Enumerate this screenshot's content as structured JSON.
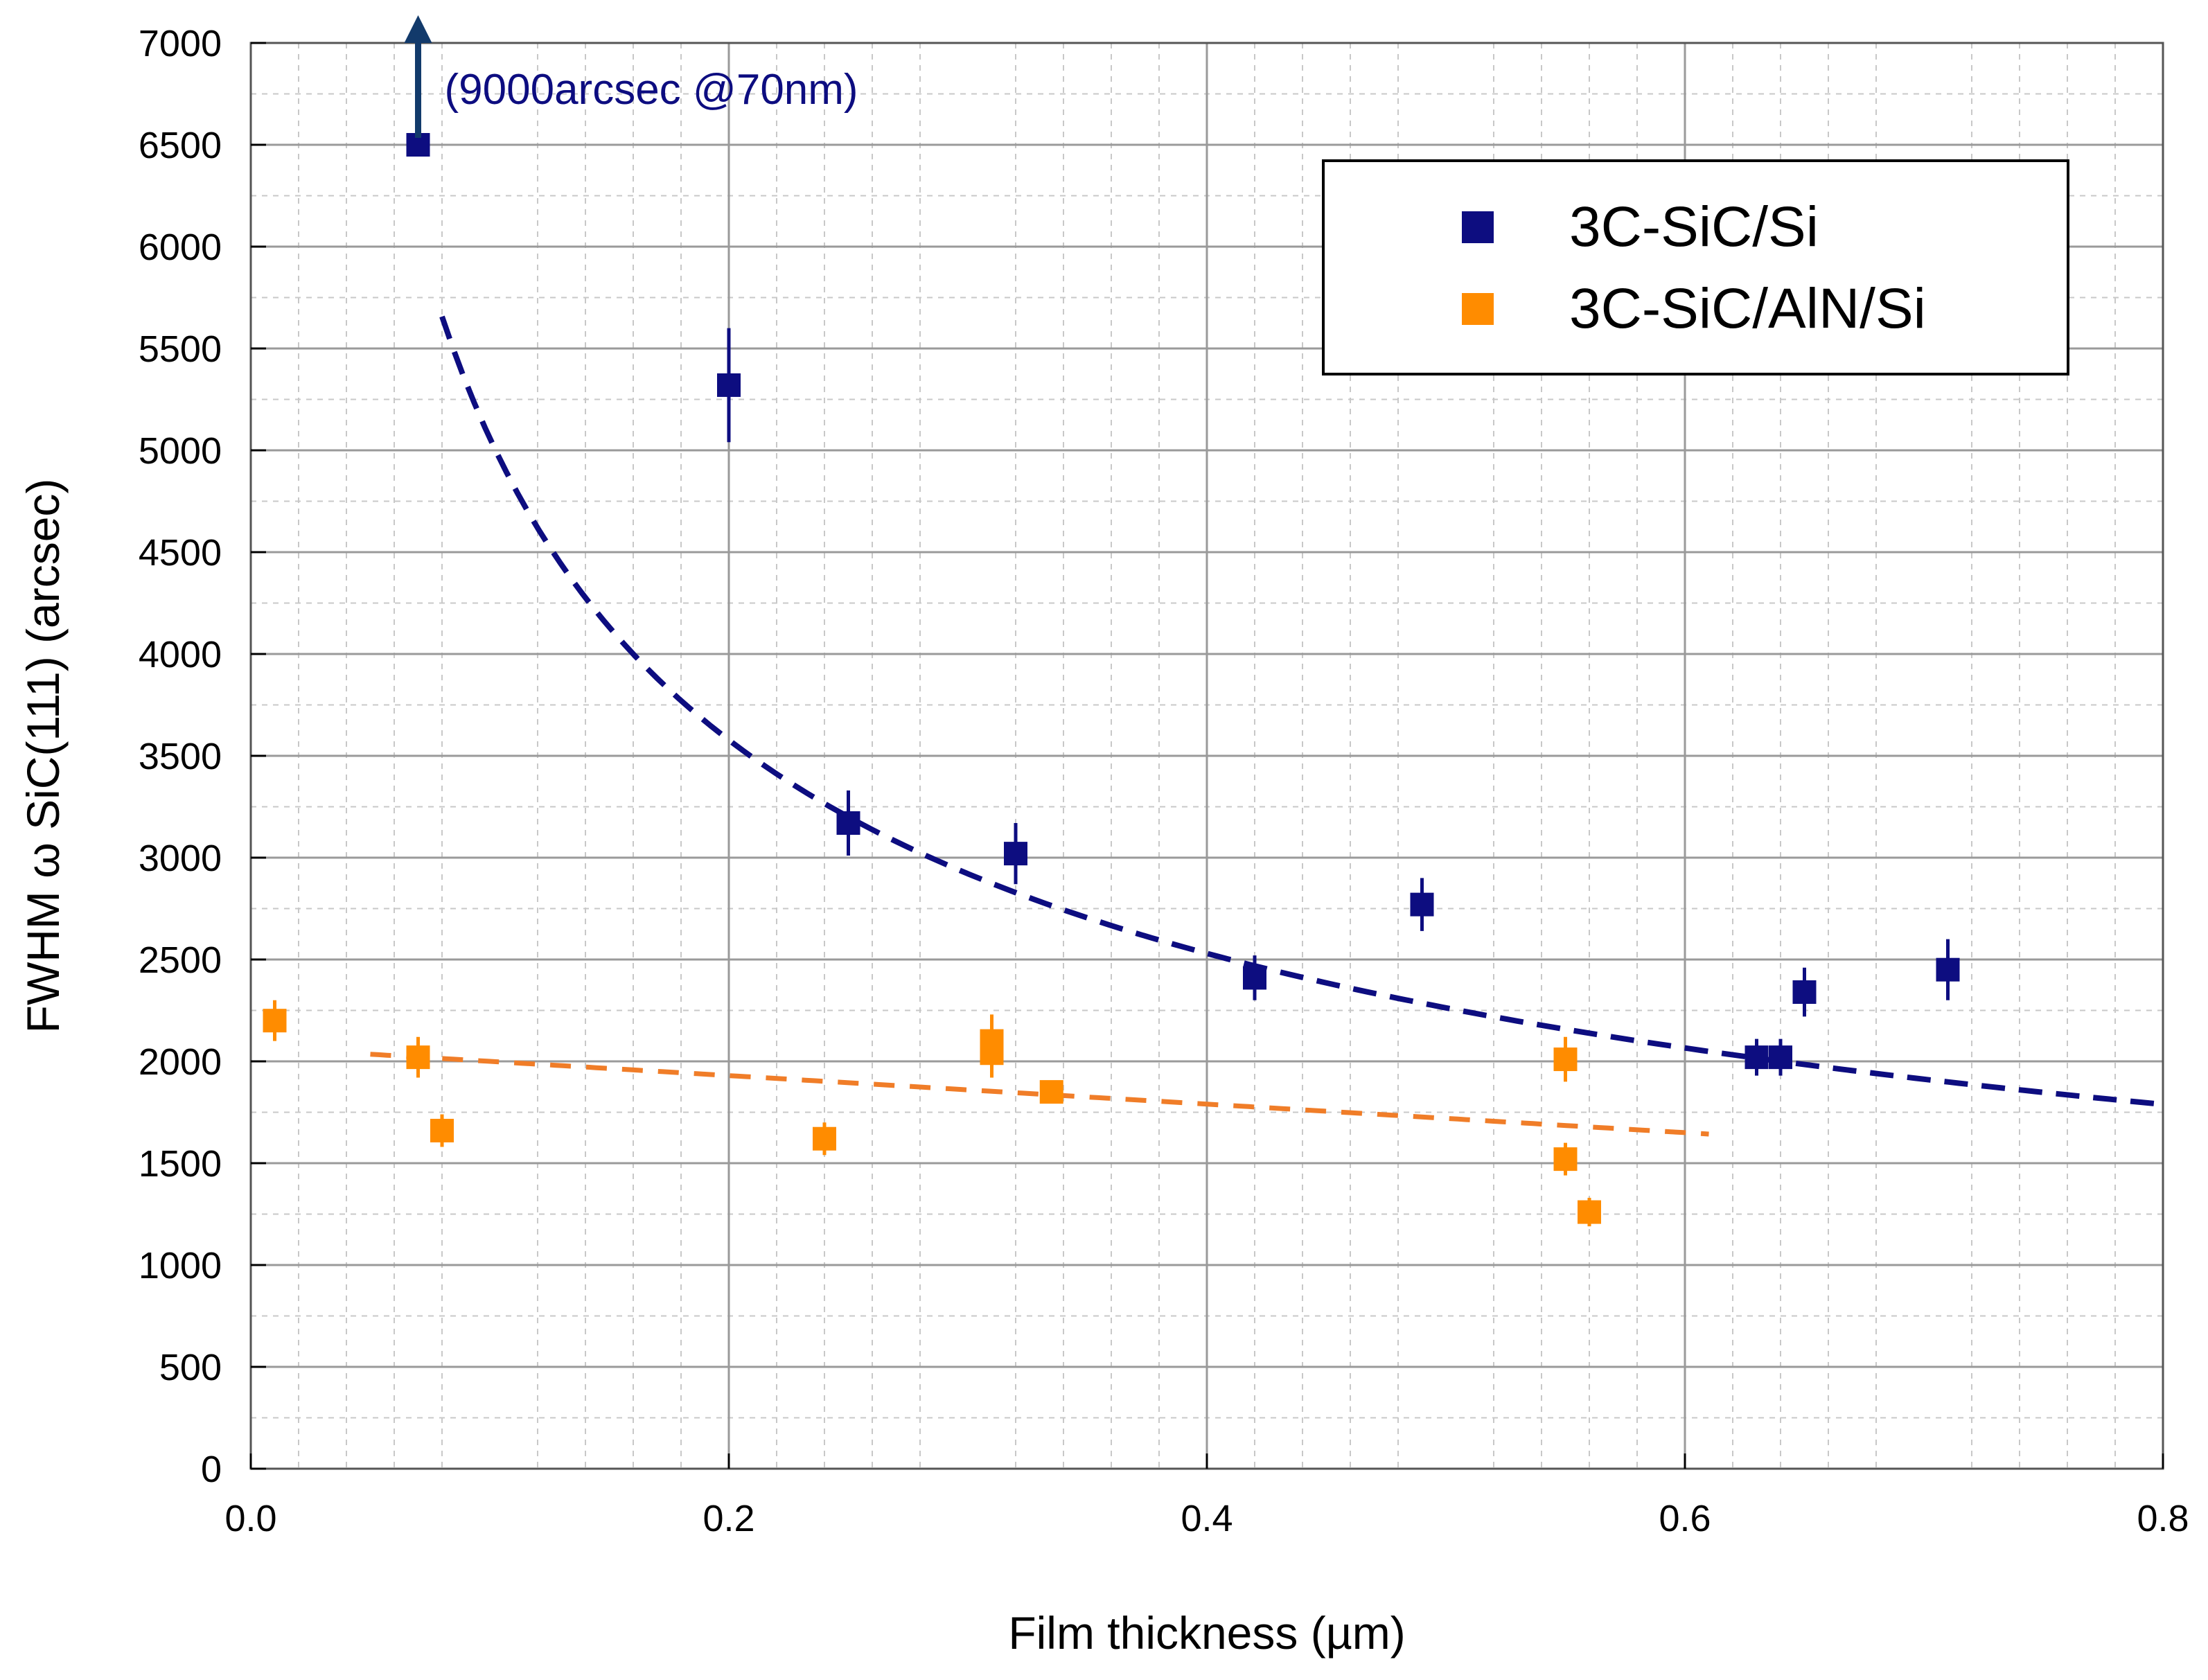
{
  "colors": {
    "series1": "#0d0d80",
    "series2": "#ff8c00",
    "fit1": "#0d0d80",
    "fit2": "#f07d28",
    "annotation": "#0d0d80",
    "arrow": "#123a6b",
    "grid_major": "#9a9a9a",
    "grid_minor": "#c8c8c8",
    "frame": "#555555",
    "text": "#000000"
  },
  "chart_data": {
    "type": "scatter",
    "title": "",
    "xlabel": "Film thickness (µm)",
    "ylabel": "FWHM ω SiC(111) (arcsec)",
    "xlim": [
      0.0,
      0.8
    ],
    "ylim": [
      0,
      7000
    ],
    "xticks": [
      0.0,
      0.2,
      0.4,
      0.6,
      0.8
    ],
    "xtick_labels": [
      "0.0",
      "0.2",
      "0.4",
      "0.6",
      "0.8"
    ],
    "yticks": [
      0,
      500,
      1000,
      1500,
      2000,
      2500,
      3000,
      3500,
      4000,
      4500,
      5000,
      5500,
      6000,
      6500,
      7000
    ],
    "ytick_labels": [
      "0",
      "500",
      "1000",
      "1500",
      "2000",
      "2500",
      "3000",
      "3500",
      "4000",
      "4500",
      "5000",
      "5500",
      "6000",
      "6500",
      "7000"
    ],
    "grid": true,
    "legend_position": "top-right",
    "series": [
      {
        "name": "3C-SiC/Si",
        "color": "#0d0d80",
        "points": [
          {
            "x": 0.07,
            "y": 6500,
            "err": 0
          },
          {
            "x": 0.2,
            "y": 5320,
            "err": 280
          },
          {
            "x": 0.25,
            "y": 3170,
            "err": 160
          },
          {
            "x": 0.32,
            "y": 3020,
            "err": 150
          },
          {
            "x": 0.42,
            "y": 2410,
            "err": 110
          },
          {
            "x": 0.49,
            "y": 2770,
            "err": 130
          },
          {
            "x": 0.63,
            "y": 2020,
            "err": 90
          },
          {
            "x": 0.64,
            "y": 2020,
            "err": 90
          },
          {
            "x": 0.65,
            "y": 2340,
            "err": 120
          },
          {
            "x": 0.71,
            "y": 2450,
            "err": 150
          }
        ],
        "fit": {
          "type": "power",
          "a": 1600,
          "b": -0.5,
          "x_range": [
            0.08,
            0.8
          ],
          "style": "dashed"
        }
      },
      {
        "name": "3C-SiC/AlN/Si",
        "color": "#ff8c00",
        "points": [
          {
            "x": 0.01,
            "y": 2200,
            "err": 100
          },
          {
            "x": 0.07,
            "y": 2020,
            "err": 100
          },
          {
            "x": 0.08,
            "y": 1660,
            "err": 80
          },
          {
            "x": 0.24,
            "y": 1620,
            "err": 80
          },
          {
            "x": 0.31,
            "y": 2100,
            "err": 130
          },
          {
            "x": 0.31,
            "y": 2040,
            "err": 120
          },
          {
            "x": 0.335,
            "y": 1850,
            "err": 50
          },
          {
            "x": 0.55,
            "y": 2010,
            "err": 110
          },
          {
            "x": 0.55,
            "y": 1520,
            "err": 80
          },
          {
            "x": 0.56,
            "y": 1260,
            "err": 70
          }
        ],
        "fit": {
          "type": "linear",
          "slope": -700,
          "intercept": 2070,
          "x_range": [
            0.05,
            0.61
          ],
          "style": "dashed"
        }
      }
    ],
    "annotations": [
      {
        "text": "(9000arcsec @70nm)",
        "x": 0.07,
        "y": 6500,
        "arrow": "up"
      }
    ]
  }
}
